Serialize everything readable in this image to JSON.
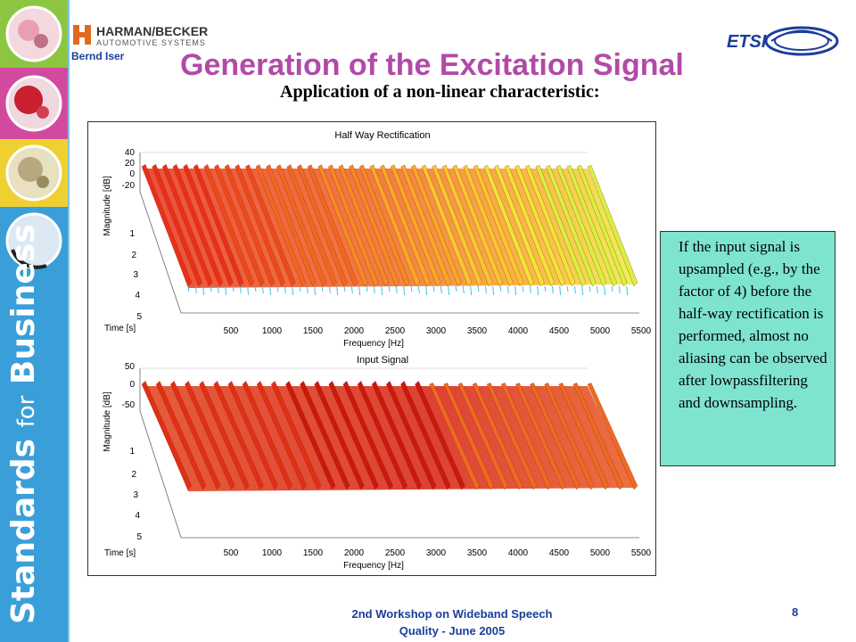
{
  "sidebar": {
    "brand_main": "Standards",
    "brand_small": "for",
    "brand_end": "Business",
    "tile_colors": [
      "#8cc640",
      "#d24aa0",
      "#f0d030",
      "#3a9fd8"
    ]
  },
  "header": {
    "company_main": "HARMAN/BECKER",
    "company_sub": "AUTOMOTIVE SYSTEMS",
    "author": "Bernd Iser",
    "etsi_logo": "ETSI",
    "title": "Generation of the Excitation Signal",
    "subtitle": "Application of a non-linear characteristic:"
  },
  "chart_data": [
    {
      "type": "surface",
      "title": "Half Way Rectification",
      "xlabel": "Frequency [Hz]",
      "ylabel": "Time [s]",
      "zlabel": "Magnitude [dB]",
      "x_ticks": [
        "500",
        "1000",
        "1500",
        "2000",
        "2500",
        "3000",
        "3500",
        "4000",
        "4500",
        "5000",
        "5500"
      ],
      "y_ticks": [
        "1",
        "2",
        "3",
        "4",
        "5"
      ],
      "z_ticks": [
        "40",
        "20",
        "0",
        "-20"
      ],
      "xlim": [
        0,
        5500
      ],
      "ylim": [
        0,
        5
      ],
      "colormap": [
        "#e83018",
        "#f06820",
        "#f8a020",
        "#f8e030",
        "#d8f040",
        "#40c8e8"
      ],
      "harmonics": 44
    },
    {
      "type": "surface",
      "title": "Input Signal",
      "xlabel": "Frequency [Hz]",
      "ylabel": "Time [s]",
      "zlabel": "Magnitude [dB]",
      "x_ticks": [
        "500",
        "1000",
        "1500",
        "2000",
        "2500",
        "3000",
        "3500",
        "4000",
        "4500",
        "5000",
        "5500"
      ],
      "y_ticks": [
        "1",
        "2",
        "3",
        "4",
        "5"
      ],
      "z_ticks": [
        "50",
        "0",
        "-50"
      ],
      "xlim": [
        0,
        5500
      ],
      "ylim": [
        0,
        5
      ],
      "colormap": [
        "#d82010",
        "#e84818",
        "#f07020",
        "#f8a030"
      ],
      "harmonics": 32,
      "cutoff_hz": 3400
    }
  ],
  "note": {
    "text": "If the input signal is upsampled (e.g., by the factor of 4) before the half-way rectification is performed, almost no aliasing can be observed after lowpassfiltering and downsampling."
  },
  "footer": {
    "line1": "2nd Workshop on Wideband Speech",
    "line2": "Quality - June 2005",
    "page": "8"
  }
}
